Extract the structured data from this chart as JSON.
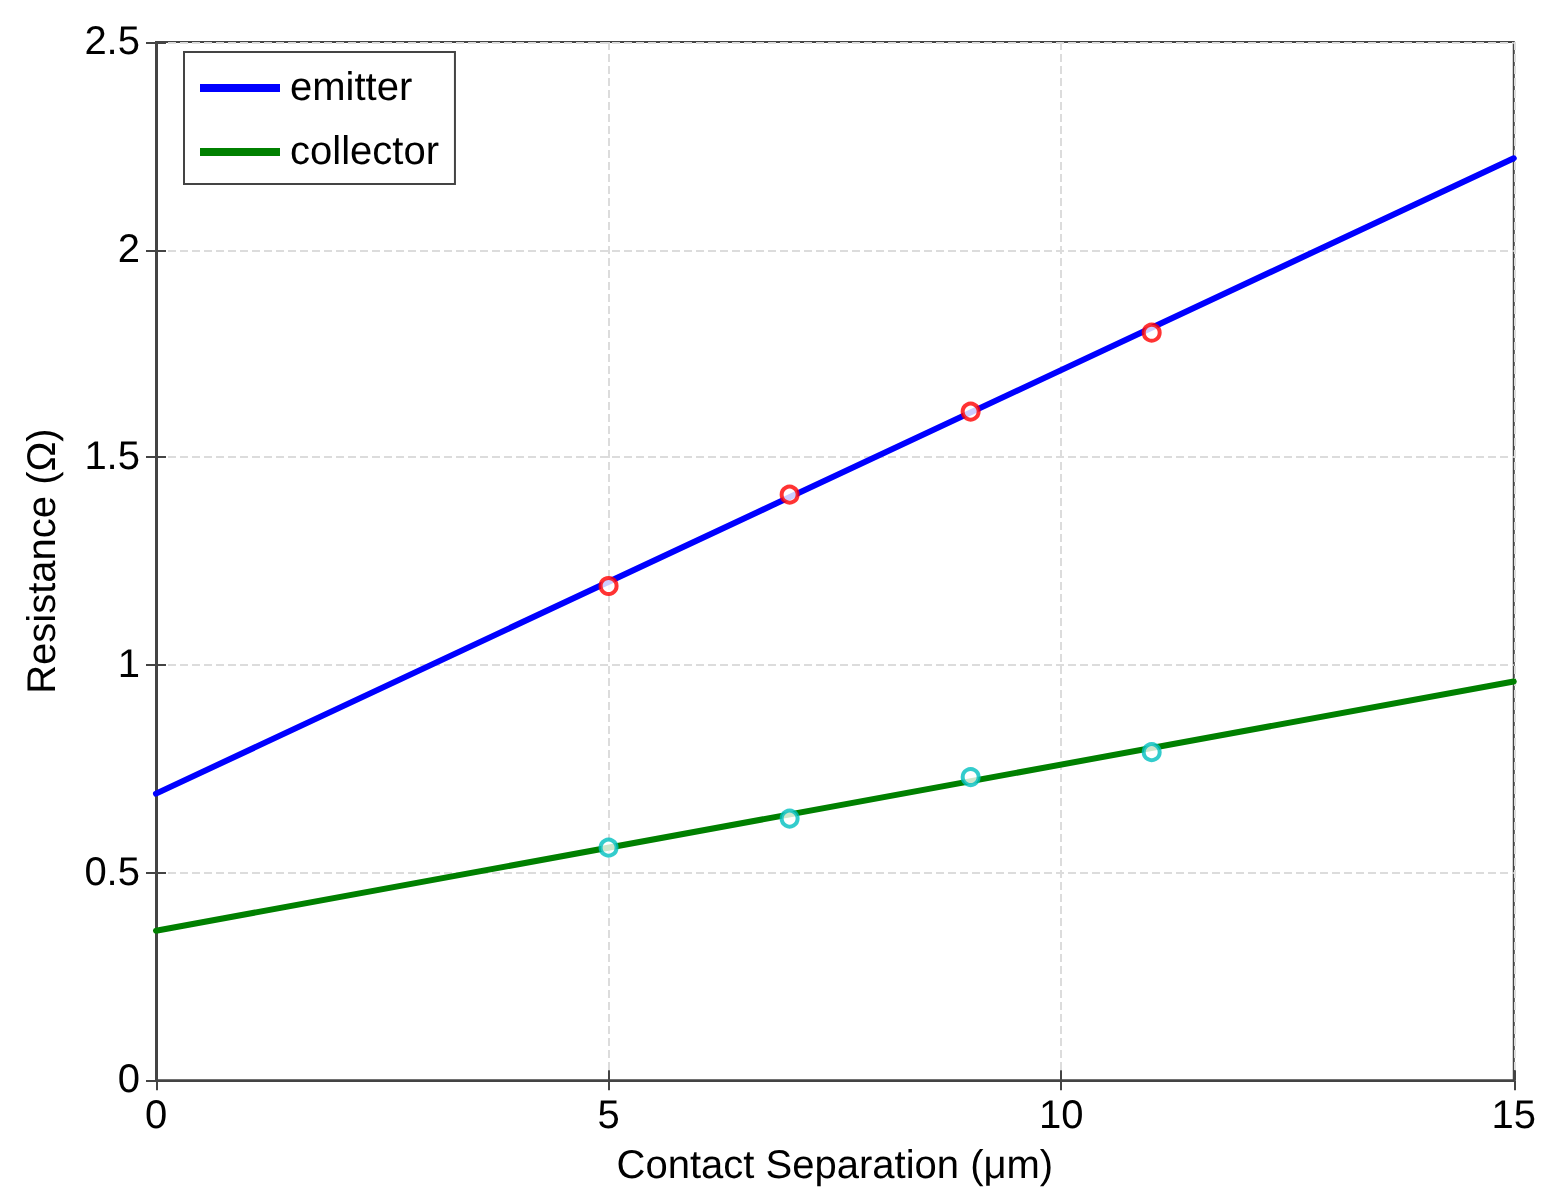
{
  "chart_data": {
    "type": "line",
    "xlabel": "Contact Separation (μm)",
    "ylabel": "Resistance (Ω)",
    "xlim": [
      0,
      15
    ],
    "xticks": [
      0,
      5,
      10,
      15
    ],
    "ylim": [
      0,
      2.5
    ],
    "yticks": [
      0,
      0.5,
      1,
      1.5,
      2,
      2.5
    ],
    "grid": true,
    "legend": "top left",
    "line_style": "solid",
    "series": [
      {
        "name": "emitter",
        "color": "#0000ff",
        "x": [
          0,
          15
        ],
        "values": [
          0.69,
          2.22
        ],
        "marker": "none"
      },
      {
        "name": "collector",
        "color": "#008000",
        "x": [
          0,
          15
        ],
        "values": [
          0.36,
          0.96
        ],
        "marker": "none"
      },
      {
        "type": "scatter",
        "color": "#ff0000",
        "x": [
          5,
          7,
          9,
          11
        ],
        "values": [
          1.19,
          1.41,
          1.61,
          1.8
        ],
        "marker": "circle"
      },
      {
        "type": "scatter",
        "color": "#00bfbf",
        "x": [
          5,
          7,
          9,
          11
        ],
        "values": [
          0.56,
          0.63,
          0.73,
          0.79
        ],
        "marker": "circle"
      }
    ]
  }
}
